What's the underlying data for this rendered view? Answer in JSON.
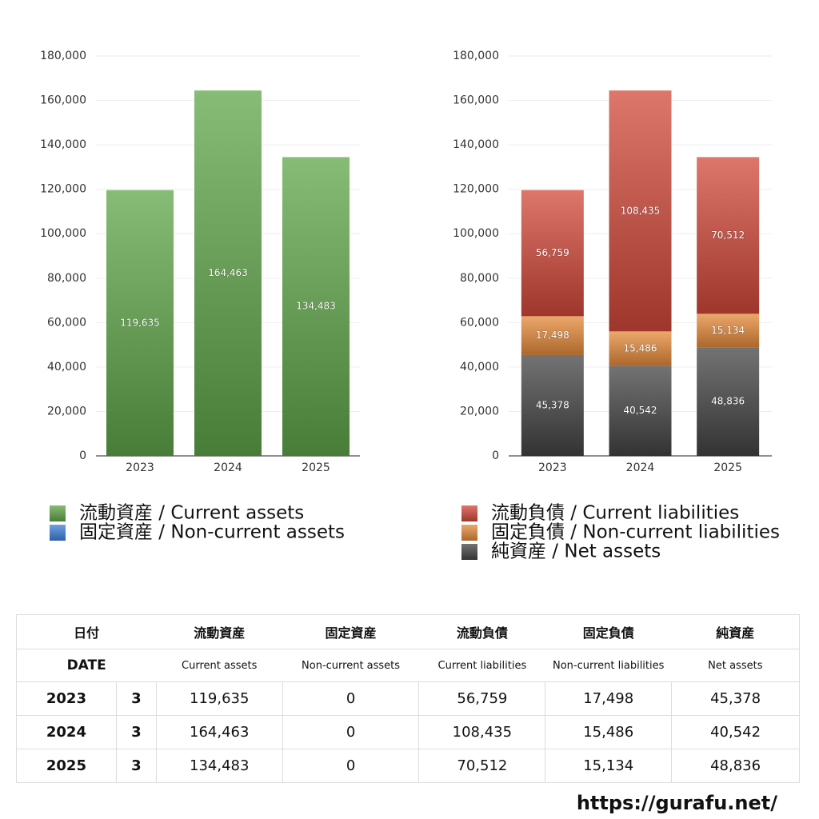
{
  "chart_data": [
    {
      "type": "bar",
      "stacked": true,
      "grid": true,
      "categories": [
        "2023",
        "2024",
        "2025"
      ],
      "series": [
        {
          "name": "流動資産 / Current assets",
          "color": "#5ea648",
          "values": [
            119635,
            164463,
            134483
          ],
          "value_labels": [
            "119,635",
            "164,463",
            "134,483"
          ]
        },
        {
          "name": "固定資産 / Non-current assets",
          "color": "#3f7fdc",
          "values": [
            0,
            0,
            0
          ]
        }
      ],
      "ylim": [
        0,
        180000
      ],
      "yticks": [
        0,
        {
          "value": 20000,
          "label": "20,000"
        },
        {
          "value": 40000,
          "label": "40,000"
        },
        {
          "value": 60000,
          "label": "60,000"
        },
        {
          "value": 80000,
          "label": "80,000"
        },
        {
          "value": 100000,
          "label": "100,000"
        },
        {
          "value": 120000,
          "label": "120,000"
        },
        {
          "value": 140000,
          "label": "140,000"
        },
        {
          "value": 160000,
          "label": "160,000"
        },
        {
          "value": 180000,
          "label": "180,000"
        }
      ]
    },
    {
      "type": "bar",
      "stacked": true,
      "grid": true,
      "categories": [
        "2023",
        "2024",
        "2025"
      ],
      "series": [
        {
          "name": "流動負債 / Current liabilities",
          "color": "#d2483a",
          "values": [
            56759,
            108435,
            70512
          ],
          "value_labels": [
            "56,759",
            "108,435",
            "70,512"
          ]
        },
        {
          "name": "固定負債 / Non-current liabilities",
          "color": "#e58a3a",
          "values": [
            17498,
            15486,
            15134
          ],
          "value_labels": [
            "17,498",
            "15,486",
            "15,134"
          ]
        },
        {
          "name": "純資産 / Net assets",
          "color": "#444444",
          "values": [
            45378,
            40542,
            48836
          ],
          "value_labels": [
            "45,378",
            "40,542",
            "48,836"
          ]
        }
      ],
      "ylim": [
        0,
        180000
      ],
      "yticks": [
        0,
        {
          "value": 20000,
          "label": "20,000"
        },
        {
          "value": 40000,
          "label": "40,000"
        },
        {
          "value": 60000,
          "label": "60,000"
        },
        {
          "value": 80000,
          "label": "80,000"
        },
        {
          "value": 100000,
          "label": "100,000"
        },
        {
          "value": 120000,
          "label": "120,000"
        },
        {
          "value": 140000,
          "label": "140,000"
        },
        {
          "value": 160000,
          "label": "160,000"
        },
        {
          "value": 180000,
          "label": "180,000"
        }
      ]
    }
  ],
  "table": {
    "header": [
      "日付",
      "流動資産",
      "固定資産",
      "流動負債",
      "固定負債",
      "純資産"
    ],
    "subheader": [
      "DATE",
      "Current assets",
      "Non-current assets",
      "Current liabilities",
      "Non-current liabilities",
      "Net assets"
    ],
    "rows": [
      [
        "2023",
        "3",
        "119,635",
        "0",
        "56,759",
        "17,498",
        "45,378"
      ],
      [
        "2024",
        "3",
        "164,463",
        "0",
        "108,435",
        "15,486",
        "40,542"
      ],
      [
        "2025",
        "3",
        "134,483",
        "0",
        "70,512",
        "15,134",
        "48,836"
      ]
    ]
  },
  "footer": "https://gurafu.net/"
}
